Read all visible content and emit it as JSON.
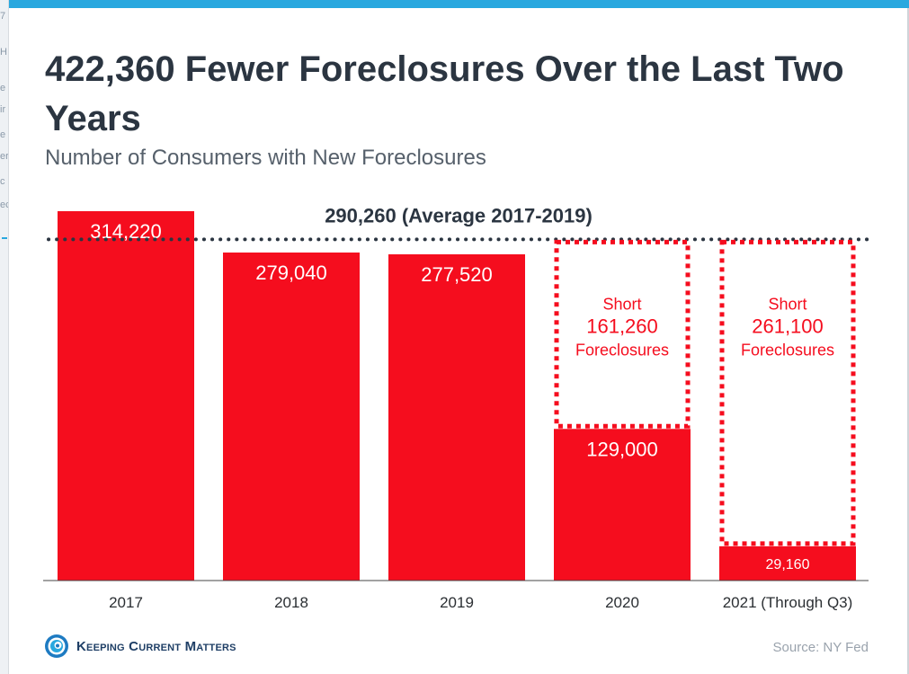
{
  "title": "422,360 Fewer Foreclosures Over the Last Two Years",
  "subtitle": "Number of Consumers with New Foreclosures",
  "source": "Source: NY Fed",
  "brand": "Keeping Current Matters",
  "colors": {
    "bar": "#f50d1e",
    "text_dark": "#2b3541",
    "accent": "#29a8df"
  },
  "sidebar_fragments": [
    "7",
    "H",
    "e",
    "ir",
    "e",
    "er",
    "c",
    "ec"
  ],
  "chart_data": {
    "type": "bar",
    "categories": [
      "2017",
      "2018",
      "2019",
      "2020",
      "2021 (Through Q3)"
    ],
    "values": [
      314220,
      279040,
      277520,
      129000,
      29160
    ],
    "value_labels": [
      "314,220",
      "279,040",
      "277,520",
      "129,000",
      "29,160"
    ],
    "ylim": [
      0,
      325000
    ],
    "average": {
      "value": 290260,
      "label": "290,260 (Average 2017-2019)"
    },
    "shortfalls": [
      {
        "category": "2020",
        "value": 161260,
        "lines": [
          "Short",
          "161,260",
          "Foreclosures"
        ]
      },
      {
        "category": "2021 (Through Q3)",
        "value": 261100,
        "lines": [
          "Short",
          "261,100",
          "Foreclosures"
        ]
      }
    ],
    "grid": false,
    "legend": "none"
  }
}
